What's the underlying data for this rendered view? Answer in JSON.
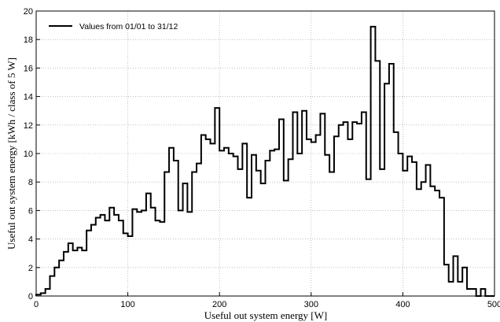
{
  "chart_data": {
    "type": "line",
    "style": "step-histogram",
    "xlabel": "Useful out system energy [W]",
    "ylabel": "Useful out system energy [kWh / class of 5 W]",
    "xlim": [
      0,
      500
    ],
    "ylim": [
      0,
      20
    ],
    "xticks": [
      0,
      100,
      200,
      300,
      400,
      500
    ],
    "yticks": [
      0,
      2,
      4,
      6,
      8,
      10,
      12,
      14,
      16,
      18,
      20
    ],
    "bin_width": 5,
    "grid": true,
    "legend_position": "top-left",
    "line_color": "#000000",
    "series": [
      {
        "name": "Values from 01/01 to 31/12",
        "bin_starts": [
          0,
          5,
          10,
          15,
          20,
          25,
          30,
          35,
          40,
          45,
          50,
          55,
          60,
          65,
          70,
          75,
          80,
          85,
          90,
          95,
          100,
          105,
          110,
          115,
          120,
          125,
          130,
          135,
          140,
          145,
          150,
          155,
          160,
          165,
          170,
          175,
          180,
          185,
          190,
          195,
          200,
          205,
          210,
          215,
          220,
          225,
          230,
          235,
          240,
          245,
          250,
          255,
          260,
          265,
          270,
          275,
          280,
          285,
          290,
          295,
          300,
          305,
          310,
          315,
          320,
          325,
          330,
          335,
          340,
          345,
          350,
          355,
          360,
          365,
          370,
          375,
          380,
          385,
          390,
          395,
          400,
          405,
          410,
          415,
          420,
          425,
          430,
          435,
          440,
          445,
          450,
          455,
          460,
          465,
          470,
          475,
          480,
          485,
          490,
          495
        ],
        "values": [
          0.1,
          0.2,
          0.5,
          1.4,
          2.0,
          2.5,
          3.1,
          3.7,
          3.2,
          3.4,
          3.2,
          4.6,
          5.0,
          5.5,
          5.7,
          5.3,
          6.2,
          5.7,
          5.3,
          4.4,
          4.2,
          6.1,
          5.9,
          6.0,
          7.2,
          6.2,
          5.3,
          5.2,
          8.7,
          10.4,
          9.5,
          6.0,
          7.9,
          5.9,
          8.7,
          9.3,
          11.3,
          11.0,
          10.7,
          13.2,
          10.2,
          10.4,
          10.0,
          9.8,
          8.9,
          10.7,
          6.9,
          9.9,
          8.8,
          7.9,
          9.5,
          10.2,
          10.3,
          12.4,
          8.1,
          9.6,
          12.9,
          10.0,
          13.0,
          11.0,
          10.8,
          11.3,
          12.8,
          9.9,
          8.7,
          11.2,
          12.0,
          12.2,
          11.0,
          12.2,
          12.1,
          12.9,
          8.2,
          18.9,
          16.5,
          8.9,
          14.9,
          16.3,
          11.5,
          10.0,
          8.8,
          9.8,
          9.4,
          7.5,
          8.0,
          9.2,
          7.7,
          7.4,
          6.9,
          2.2,
          1.0,
          2.8,
          1.0,
          2.0,
          0.5,
          0.5,
          0.0,
          0.5,
          0.0,
          0.0
        ]
      }
    ]
  }
}
